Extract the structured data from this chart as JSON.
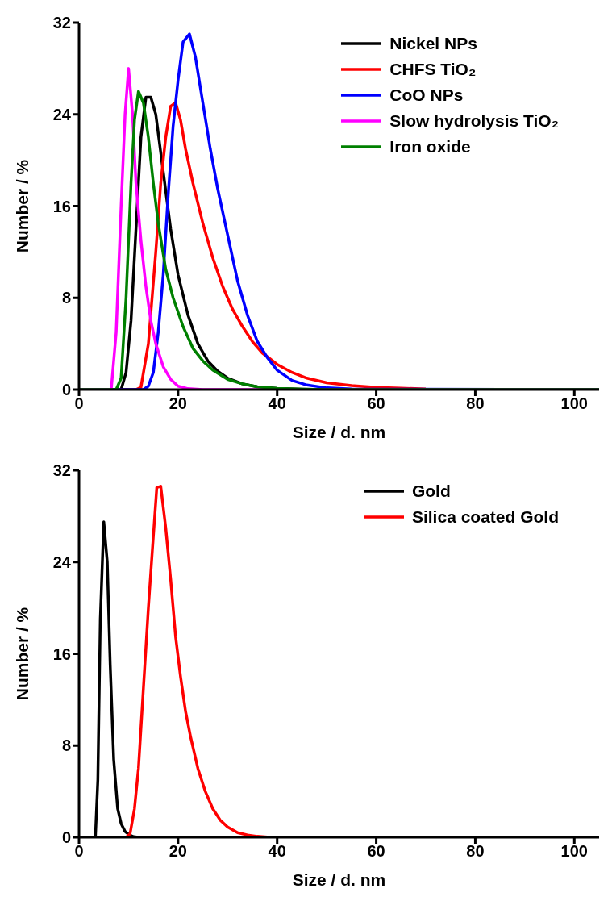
{
  "chart_data": [
    {
      "type": "line",
      "xlabel": "Size / d. nm",
      "ylabel": "Number / %",
      "xlim": [
        0,
        105
      ],
      "ylim": [
        0,
        32
      ],
      "xticks": [
        0,
        20,
        40,
        60,
        80,
        100
      ],
      "yticks": [
        0,
        8,
        16,
        24,
        32
      ],
      "grid": false,
      "legend": "top right",
      "marker": "none",
      "line_style": "solid",
      "series": [
        {
          "name": "Nickel NPs",
          "color": "#000000",
          "x": [
            0,
            8.5,
            9.5,
            10.5,
            11.5,
            12.5,
            13.5,
            14.5,
            15.5,
            17,
            18.5,
            20,
            22,
            24,
            26,
            28,
            30,
            33,
            36,
            40,
            45,
            50,
            105
          ],
          "values": [
            0,
            0,
            1.5,
            6,
            14,
            22,
            25.5,
            25.5,
            24,
            19,
            14,
            10,
            6.5,
            4,
            2.5,
            1.6,
            1,
            0.5,
            0.25,
            0.1,
            0.03,
            0,
            0
          ]
        },
        {
          "name": "CHFS TiO₂",
          "color": "#ff0000",
          "x": [
            0,
            11.5,
            12.5,
            14,
            15.5,
            16.5,
            17.5,
            18.5,
            19.5,
            20.5,
            21.5,
            23,
            25,
            27,
            29,
            31,
            33,
            35,
            37,
            40,
            43,
            46,
            50,
            55,
            60,
            65,
            70
          ],
          "values": [
            0,
            0,
            0.2,
            4,
            12,
            18,
            22,
            24.7,
            25,
            23.5,
            21,
            18,
            14.5,
            11.5,
            9,
            7,
            5.5,
            4.2,
            3.2,
            2.2,
            1.5,
            1,
            0.6,
            0.35,
            0.2,
            0.12,
            0.06
          ]
        },
        {
          "name": "CoO NPs",
          "color": "#0000ff",
          "x": [
            0,
            12,
            13,
            14,
            15,
            16,
            17,
            18,
            19,
            20,
            21,
            22.3,
            23.5,
            25,
            26.5,
            28,
            30,
            32,
            34,
            36,
            38,
            40,
            43,
            46,
            50,
            55,
            105
          ],
          "values": [
            0,
            0,
            0,
            0.3,
            1.5,
            5,
            10,
            17,
            23,
            27,
            30.3,
            31,
            29,
            25,
            21,
            17.5,
            13.5,
            9.5,
            6.5,
            4.2,
            2.8,
            1.7,
            0.8,
            0.4,
            0.15,
            0.05,
            0
          ]
        },
        {
          "name": "Slow hydrolysis TiO₂",
          "color": "#ff00ff",
          "x": [
            0,
            6.5,
            7.5,
            8.5,
            9.3,
            10,
            10.8,
            11.5,
            12.5,
            13.5,
            14.5,
            15.5,
            17,
            18.5,
            20,
            22,
            25,
            105
          ],
          "values": [
            0,
            0,
            5,
            16,
            24,
            28,
            24,
            18,
            13,
            9,
            6,
            4,
            2,
            0.9,
            0.3,
            0.08,
            0,
            0
          ]
        },
        {
          "name": "Iron oxide",
          "color": "#008000",
          "x": [
            0,
            7.5,
            8.5,
            9.5,
            10.5,
            11.2,
            12,
            13,
            14,
            15,
            16,
            17.5,
            19,
            21,
            23,
            25,
            27,
            30,
            33,
            36,
            40,
            45,
            50,
            105
          ],
          "values": [
            0,
            0,
            1,
            8,
            18,
            23.5,
            26,
            25,
            22,
            18,
            14.5,
            10.5,
            8,
            5.5,
            3.6,
            2.5,
            1.7,
            0.9,
            0.5,
            0.25,
            0.1,
            0.03,
            0,
            0
          ]
        }
      ]
    },
    {
      "type": "line",
      "xlabel": "Size / d. nm",
      "ylabel": "Number / %",
      "xlim": [
        0,
        105
      ],
      "ylim": [
        0,
        32
      ],
      "xticks": [
        0,
        20,
        40,
        60,
        80,
        100
      ],
      "yticks": [
        0,
        8,
        16,
        24,
        32
      ],
      "grid": false,
      "legend": "top right",
      "marker": "none",
      "line_style": "solid",
      "series": [
        {
          "name": "Gold",
          "color": "#000000",
          "x": [
            0,
            3.3,
            3.8,
            4.3,
            5,
            5.7,
            6.3,
            7,
            7.8,
            8.5,
            9.3,
            10.2,
            11,
            12,
            105
          ],
          "values": [
            0,
            0,
            5,
            19,
            27.5,
            24,
            15,
            6.8,
            2.5,
            1.2,
            0.5,
            0.2,
            0.05,
            0,
            0
          ]
        },
        {
          "name": "Silica coated Gold",
          "color": "#ff0000",
          "x": [
            0,
            9.5,
            10.3,
            11.2,
            12,
            13,
            14,
            14.8,
            15.7,
            16.5,
            17.5,
            18.5,
            19.5,
            20.5,
            21.5,
            22.5,
            24,
            25.5,
            27,
            28.5,
            30,
            32,
            34,
            36,
            38,
            40,
            105
          ],
          "values": [
            0,
            0,
            0.3,
            2.5,
            6,
            13,
            20,
            25,
            30.5,
            30.6,
            27,
            22.5,
            17.5,
            14,
            11,
            8.8,
            6,
            4,
            2.5,
            1.5,
            0.9,
            0.4,
            0.2,
            0.08,
            0.02,
            0,
            0
          ]
        }
      ]
    }
  ]
}
